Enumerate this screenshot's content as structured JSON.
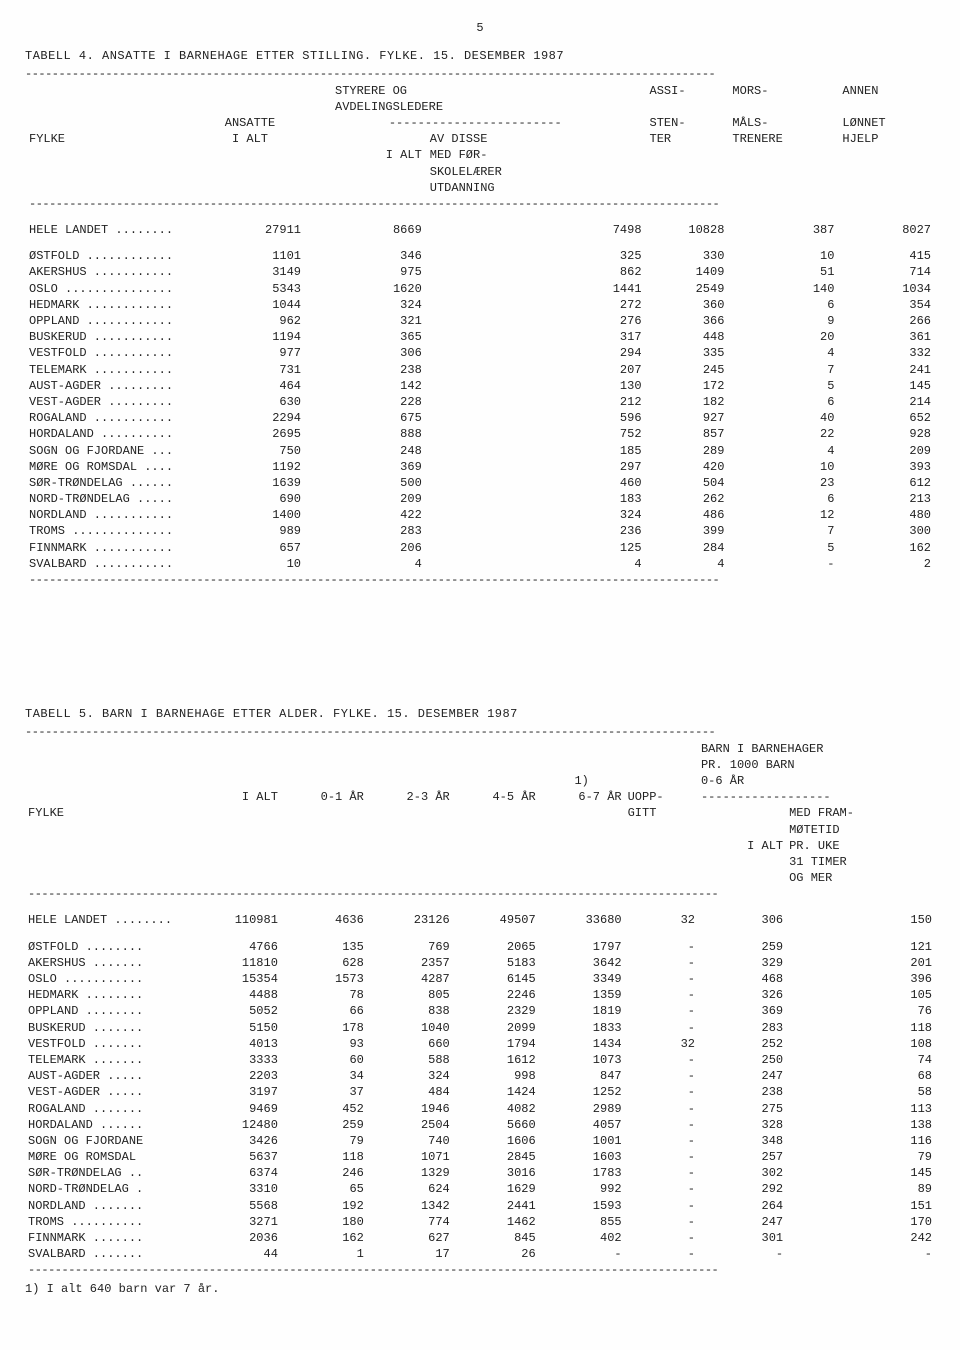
{
  "page_number": "5",
  "table4": {
    "title": "TABELL 4.  ANSATTE I BARNEHAGE ETTER STILLING.  FYLKE. 15. DESEMBER 1987",
    "columns": {
      "fylke": "FYLKE",
      "ansatte": "ANSATTE",
      "ialt_sub": "I ALT",
      "styrere1": "STYRERE OG",
      "styrere2": "AVDELINGSLEDERE",
      "ialt2": "I ALT",
      "avdisse1": "AV DISSE",
      "avdisse2": "MED FØR-",
      "avdisse3": "SKOLELÆRER",
      "avdisse4": "UTDANNING",
      "assi1": "ASSI-",
      "assi2": "STEN-",
      "assi3": "TER",
      "mors1": "MORS-",
      "mors2": "MÅLS-",
      "mors3": "TRENERE",
      "annen1": "ANNEN",
      "annen2": "LØNNET",
      "annen3": "HJELP"
    },
    "total": {
      "label": "HELE LANDET ........",
      "v": [
        "27911",
        "8669",
        "7498",
        "10828",
        "387",
        "8027"
      ]
    },
    "rows": [
      {
        "label": "ØSTFOLD ............",
        "v": [
          "1101",
          "346",
          "325",
          "330",
          "10",
          "415"
        ]
      },
      {
        "label": "AKERSHUS ...........",
        "v": [
          "3149",
          "975",
          "862",
          "1409",
          "51",
          "714"
        ]
      },
      {
        "label": "OSLO ...............",
        "v": [
          "5343",
          "1620",
          "1441",
          "2549",
          "140",
          "1034"
        ]
      },
      {
        "label": "HEDMARK ............",
        "v": [
          "1044",
          "324",
          "272",
          "360",
          "6",
          "354"
        ]
      },
      {
        "label": "OPPLAND ............",
        "v": [
          "962",
          "321",
          "276",
          "366",
          "9",
          "266"
        ]
      },
      {
        "label": "BUSKERUD ...........",
        "v": [
          "1194",
          "365",
          "317",
          "448",
          "20",
          "361"
        ]
      },
      {
        "label": "VESTFOLD ...........",
        "v": [
          "977",
          "306",
          "294",
          "335",
          "4",
          "332"
        ]
      },
      {
        "label": "TELEMARK ...........",
        "v": [
          "731",
          "238",
          "207",
          "245",
          "7",
          "241"
        ]
      },
      {
        "label": "AUST-AGDER .........",
        "v": [
          "464",
          "142",
          "130",
          "172",
          "5",
          "145"
        ]
      },
      {
        "label": "VEST-AGDER .........",
        "v": [
          "630",
          "228",
          "212",
          "182",
          "6",
          "214"
        ]
      },
      {
        "label": "ROGALAND ...........",
        "v": [
          "2294",
          "675",
          "596",
          "927",
          "40",
          "652"
        ]
      },
      {
        "label": "HORDALAND ..........",
        "v": [
          "2695",
          "888",
          "752",
          "857",
          "22",
          "928"
        ]
      },
      {
        "label": "SOGN OG FJORDANE ...",
        "v": [
          "750",
          "248",
          "185",
          "289",
          "4",
          "209"
        ]
      },
      {
        "label": "MØRE OG ROMSDAL ....",
        "v": [
          "1192",
          "369",
          "297",
          "420",
          "10",
          "393"
        ]
      },
      {
        "label": "SØR-TRØNDELAG ......",
        "v": [
          "1639",
          "500",
          "460",
          "504",
          "23",
          "612"
        ]
      },
      {
        "label": "NORD-TRØNDELAG .....",
        "v": [
          "690",
          "209",
          "183",
          "262",
          "6",
          "213"
        ]
      },
      {
        "label": "NORDLAND ...........",
        "v": [
          "1400",
          "422",
          "324",
          "486",
          "12",
          "480"
        ]
      },
      {
        "label": "TROMS ..............",
        "v": [
          "989",
          "283",
          "236",
          "399",
          "7",
          "300"
        ]
      },
      {
        "label": "FINNMARK ...........",
        "v": [
          "657",
          "206",
          "125",
          "284",
          "5",
          "162"
        ]
      },
      {
        "label": "SVALBARD ...........",
        "v": [
          "10",
          "4",
          "4",
          "4",
          "-",
          "2"
        ]
      }
    ]
  },
  "table5": {
    "title": "TABELL 5.  BARN I BARNEHAGE ETTER ALDER.  FYLKE. 15. DESEMBER 1987",
    "columns": {
      "fylke": "FYLKE",
      "ialt": "I ALT",
      "a01": "0-1 ÅR",
      "a23": "2-3 ÅR",
      "a45": "4-5 ÅR",
      "a67": "6-7 ÅR",
      "note1": "1)",
      "uopp1": "UOPP-",
      "uopp2": "GITT",
      "bar1": "BARN I BARNEHAGER",
      "bar2": "PR. 1000 BARN",
      "bar3": "0-6 ÅR",
      "ialt2": "I ALT",
      "med1": "MED FRAM-",
      "med2": "MØTETID",
      "med3": "PR. UKE",
      "med4": "31 TIMER",
      "med5": "OG MER"
    },
    "total": {
      "label": "HELE LANDET ........",
      "v": [
        "110981",
        "4636",
        "23126",
        "49507",
        "33680",
        "32",
        "306",
        "150"
      ]
    },
    "rows": [
      {
        "label": "ØSTFOLD ........",
        "v": [
          "4766",
          "135",
          "769",
          "2065",
          "1797",
          "-",
          "259",
          "121"
        ]
      },
      {
        "label": "AKERSHUS .......",
        "v": [
          "11810",
          "628",
          "2357",
          "5183",
          "3642",
          "-",
          "329",
          "201"
        ]
      },
      {
        "label": "OSLO ...........",
        "v": [
          "15354",
          "1573",
          "4287",
          "6145",
          "3349",
          "-",
          "468",
          "396"
        ]
      },
      {
        "label": "HEDMARK ........",
        "v": [
          "4488",
          "78",
          "805",
          "2246",
          "1359",
          "-",
          "326",
          "105"
        ]
      },
      {
        "label": "OPPLAND ........",
        "v": [
          "5052",
          "66",
          "838",
          "2329",
          "1819",
          "-",
          "369",
          "76"
        ]
      },
      {
        "label": "BUSKERUD .......",
        "v": [
          "5150",
          "178",
          "1040",
          "2099",
          "1833",
          "-",
          "283",
          "118"
        ]
      },
      {
        "label": "VESTFOLD .......",
        "v": [
          "4013",
          "93",
          "660",
          "1794",
          "1434",
          "32",
          "252",
          "108"
        ]
      },
      {
        "label": "TELEMARK .......",
        "v": [
          "3333",
          "60",
          "588",
          "1612",
          "1073",
          "-",
          "250",
          "74"
        ]
      },
      {
        "label": "AUST-AGDER .....",
        "v": [
          "2203",
          "34",
          "324",
          "998",
          "847",
          "-",
          "247",
          "68"
        ]
      },
      {
        "label": "VEST-AGDER .....",
        "v": [
          "3197",
          "37",
          "484",
          "1424",
          "1252",
          "-",
          "238",
          "58"
        ]
      },
      {
        "label": "ROGALAND .......",
        "v": [
          "9469",
          "452",
          "1946",
          "4082",
          "2989",
          "-",
          "275",
          "113"
        ]
      },
      {
        "label": "HORDALAND ......",
        "v": [
          "12480",
          "259",
          "2504",
          "5660",
          "4057",
          "-",
          "328",
          "138"
        ]
      },
      {
        "label": "SOGN OG FJORDANE",
        "v": [
          "3426",
          "79",
          "740",
          "1606",
          "1001",
          "-",
          "348",
          "116"
        ]
      },
      {
        "label": "MØRE OG ROMSDAL ",
        "v": [
          "5637",
          "118",
          "1071",
          "2845",
          "1603",
          "-",
          "257",
          "79"
        ]
      },
      {
        "label": "SØR-TRØNDELAG ..",
        "v": [
          "6374",
          "246",
          "1329",
          "3016",
          "1783",
          "-",
          "302",
          "145"
        ]
      },
      {
        "label": "NORD-TRØNDELAG .",
        "v": [
          "3310",
          "65",
          "624",
          "1629",
          "992",
          "-",
          "292",
          "89"
        ]
      },
      {
        "label": "NORDLAND .......",
        "v": [
          "5568",
          "192",
          "1342",
          "2441",
          "1593",
          "-",
          "264",
          "151"
        ]
      },
      {
        "label": "TROMS ..........",
        "v": [
          "3271",
          "180",
          "774",
          "1462",
          "855",
          "-",
          "247",
          "170"
        ]
      },
      {
        "label": "FINNMARK .......",
        "v": [
          "2036",
          "162",
          "627",
          "845",
          "402",
          "-",
          "301",
          "242"
        ]
      },
      {
        "label": "SVALBARD .......",
        "v": [
          "44",
          "1",
          "17",
          "26",
          "-",
          "-",
          "-",
          "-"
        ]
      }
    ],
    "footnote": "1) I alt 640 barn var 7 år."
  },
  "dashes": "-------------------------------------------------------------------------------------------------------",
  "subdash": "------------------------",
  "subdash2": "------------------"
}
